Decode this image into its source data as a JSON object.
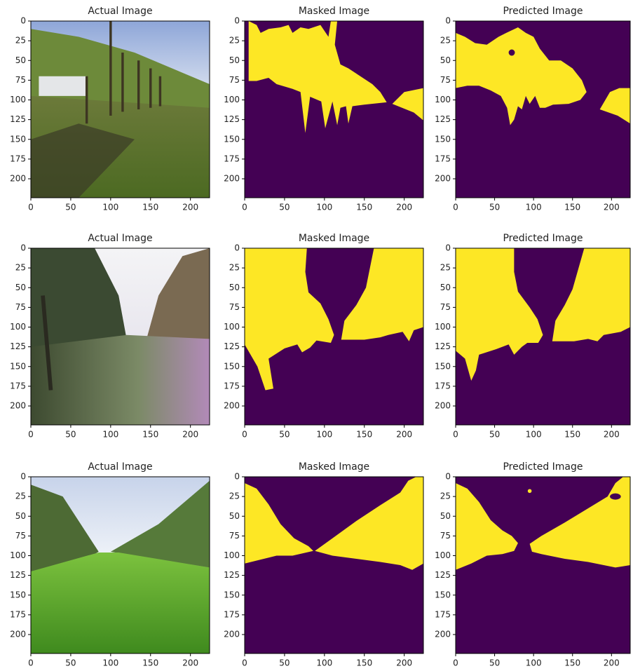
{
  "chart_data": [
    {
      "type": "image",
      "title": "Actual Image",
      "xlim": [
        0,
        224
      ],
      "ylim": [
        0,
        224
      ],
      "xticks": [
        0,
        50,
        100,
        150,
        200
      ],
      "yticks": [
        0,
        25,
        50,
        75,
        100,
        125,
        150,
        175,
        200
      ]
    },
    {
      "type": "image",
      "title": "Masked Image",
      "xlim": [
        0,
        224
      ],
      "ylim": [
        0,
        224
      ],
      "xticks": [
        0,
        50,
        100,
        150,
        200
      ],
      "yticks": [
        0,
        25,
        50,
        75,
        100,
        125,
        150,
        175,
        200
      ]
    },
    {
      "type": "image",
      "title": "Predicted Image",
      "xlim": [
        0,
        224
      ],
      "ylim": [
        0,
        224
      ],
      "xticks": [
        0,
        50,
        100,
        150,
        200
      ],
      "yticks": [
        0,
        25,
        50,
        75,
        100,
        125,
        150,
        175,
        200
      ]
    },
    {
      "type": "image",
      "title": "Actual Image",
      "xlim": [
        0,
        224
      ],
      "ylim": [
        0,
        224
      ],
      "xticks": [
        0,
        50,
        100,
        150,
        200
      ],
      "yticks": [
        0,
        25,
        50,
        75,
        100,
        125,
        150,
        175,
        200
      ]
    },
    {
      "type": "image",
      "title": "Masked Image",
      "xlim": [
        0,
        224
      ],
      "ylim": [
        0,
        224
      ],
      "xticks": [
        0,
        50,
        100,
        150,
        200
      ],
      "yticks": [
        0,
        25,
        50,
        75,
        100,
        125,
        150,
        175,
        200
      ]
    },
    {
      "type": "image",
      "title": "Predicted Image",
      "xlim": [
        0,
        224
      ],
      "ylim": [
        0,
        224
      ],
      "xticks": [
        0,
        50,
        100,
        150,
        200
      ],
      "yticks": [
        0,
        25,
        50,
        75,
        100,
        125,
        150,
        175,
        200
      ]
    },
    {
      "type": "image",
      "title": "Actual Image",
      "xlim": [
        0,
        224
      ],
      "ylim": [
        0,
        224
      ],
      "xticks": [
        0,
        50,
        100,
        150,
        200
      ],
      "yticks": [
        0,
        25,
        50,
        75,
        100,
        125,
        150,
        175,
        200
      ]
    },
    {
      "type": "image",
      "title": "Masked Image",
      "xlim": [
        0,
        224
      ],
      "ylim": [
        0,
        224
      ],
      "xticks": [
        0,
        50,
        100,
        150,
        200
      ],
      "yticks": [
        0,
        25,
        50,
        75,
        100,
        125,
        150,
        175,
        200
      ]
    },
    {
      "type": "image",
      "title": "Predicted Image",
      "xlim": [
        0,
        224
      ],
      "ylim": [
        0,
        224
      ],
      "xticks": [
        0,
        50,
        100,
        150,
        200
      ],
      "yticks": [
        0,
        25,
        50,
        75,
        100,
        125,
        150,
        175,
        200
      ]
    }
  ]
}
